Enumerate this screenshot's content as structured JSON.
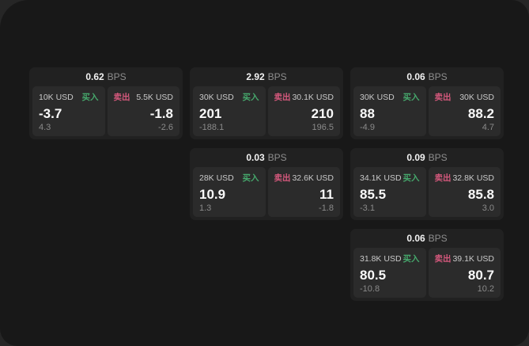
{
  "window": {
    "bg_color": "#181818",
    "backdrop_color": "#262626",
    "card_bg_color": "#212121",
    "panel_bg_color": "#2b2b2b"
  },
  "labels": {
    "bps_unit": "BPS",
    "buy": "买入",
    "sell": "卖出"
  },
  "colors": {
    "buy_green": "#46a86c",
    "sell_pink": "#d4587c",
    "value_white": "#fafafa",
    "muted_gray": "#8a8a8a"
  },
  "cards": [
    {
      "col": 1,
      "row": 1,
      "bps": "0.62",
      "buy": {
        "volume": "10K USD",
        "price": "-3.7",
        "delta": "4.3"
      },
      "sell": {
        "volume": "5.5K USD",
        "price": "-1.8",
        "delta": "-2.6"
      }
    },
    {
      "col": 2,
      "row": 1,
      "bps": "2.92",
      "buy": {
        "volume": "30K USD",
        "price": "201",
        "delta": "-188.1"
      },
      "sell": {
        "volume": "30.1K USD",
        "price": "210",
        "delta": "196.5"
      }
    },
    {
      "col": 3,
      "row": 1,
      "bps": "0.06",
      "buy": {
        "volume": "30K USD",
        "price": "88",
        "delta": "-4.9"
      },
      "sell": {
        "volume": "30K USD",
        "price": "88.2",
        "delta": "4.7"
      }
    },
    {
      "col": 2,
      "row": 2,
      "bps": "0.03",
      "buy": {
        "volume": "28K USD",
        "price": "10.9",
        "delta": "1.3"
      },
      "sell": {
        "volume": "32.6K USD",
        "price": "11",
        "delta": "-1.8"
      }
    },
    {
      "col": 3,
      "row": 2,
      "bps": "0.09",
      "buy": {
        "volume": "34.1K USD",
        "price": "85.5",
        "delta": "-3.1"
      },
      "sell": {
        "volume": "32.8K USD",
        "price": "85.8",
        "delta": "3.0"
      }
    },
    {
      "col": 3,
      "row": 3,
      "bps": "0.06",
      "buy": {
        "volume": "31.8K USD",
        "price": "80.5",
        "delta": "-10.8"
      },
      "sell": {
        "volume": "39.1K USD",
        "price": "80.7",
        "delta": "10.2"
      }
    }
  ]
}
